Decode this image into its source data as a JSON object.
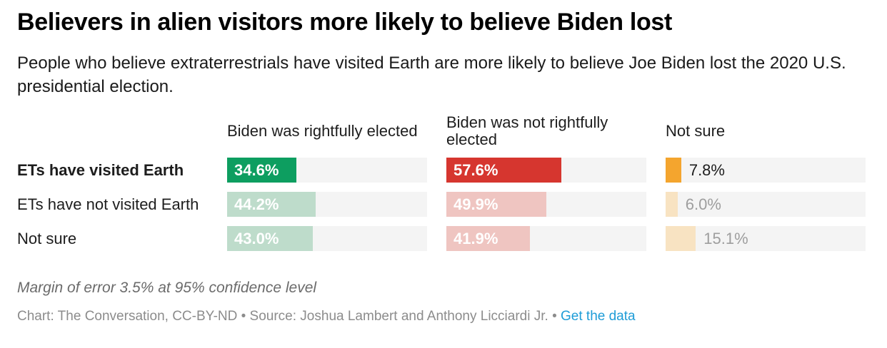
{
  "chart_data": {
    "type": "bar",
    "variant": "split-bars-small-multiples",
    "title": "Believers in alien visitors more likely to believe Biden lost",
    "subtitle": "People who believe extraterrestrials have visited Earth are more likely to believe Joe Biden lost the 2020 U.S. presidential election.",
    "categories": [
      "ETs have visited Earth",
      "ETs have not visited Earth",
      "Not sure"
    ],
    "emphasized_category": "ETs have visited Earth",
    "series": [
      {
        "name": "Biden was rightfully elected",
        "values": [
          34.6,
          44.2,
          43.0
        ],
        "value_labels": [
          "34.6%",
          "44.2%",
          "43.0%"
        ],
        "color_emphasis": "#0d9e60",
        "color_muted": "#bedccb",
        "value_label_position": "inside"
      },
      {
        "name": "Biden was not rightfully elected",
        "values": [
          57.6,
          49.9,
          41.9
        ],
        "value_labels": [
          "57.6%",
          "49.9%",
          "41.9%"
        ],
        "color_emphasis": "#d6362f",
        "color_muted": "#efc5c1",
        "value_label_position": "outside-inside",
        "value_label_position_note": "inside",
        "value_label_position_final": "inside"
      },
      {
        "name": "Not sure",
        "values": [
          7.8,
          6.0,
          15.1
        ],
        "value_labels": [
          "7.8%",
          "6.0%",
          "15.1%"
        ],
        "color_emphasis": "#f4a52e",
        "color_muted": "#f8e3c2",
        "value_label_position": "outside"
      }
    ],
    "xlim": [
      0,
      100
    ],
    "grid": false,
    "legend": "column-headers",
    "track_color": "#f4f4f4"
  },
  "colors": {
    "value_label_inside": "#ffffff",
    "value_label_outside_emphasis": "#1d1d1d",
    "value_label_outside_muted": "#9e9e9e",
    "link": "#1e9cd7"
  },
  "footer": {
    "note": "Margin of error 3.5% at 95% confidence level",
    "credit_prefix": "Chart: The Conversation, CC-BY-ND • Source: Joshua Lambert and Anthony Licciardi Jr. • ",
    "link_label": "Get the data"
  }
}
